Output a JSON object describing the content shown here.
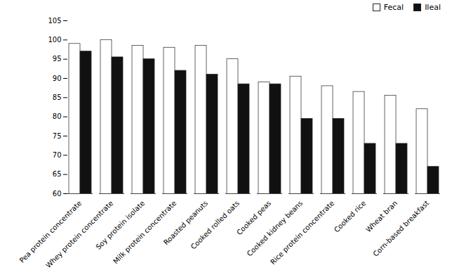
{
  "chart_data": {
    "type": "bar",
    "categories": [
      "Pea protein concentrate",
      "Whey protein concentrate",
      "Soy protein isolate",
      "Milk protein concentrate",
      "Roasted peanuts",
      "Cooked rolled oats",
      "Cooked peas",
      "Cooked kidney beans",
      "Rice protein concentrate",
      "Cooked rice",
      "Wheat bran",
      "Corn-based breakfast"
    ],
    "series": [
      {
        "name": "Fecal",
        "color": "#ffffff",
        "values": [
          99,
          100,
          98.5,
          98,
          98.5,
          95,
          89,
          90.5,
          88,
          86.5,
          85.5,
          82
        ]
      },
      {
        "name": "Ileal",
        "color": "#111111",
        "values": [
          97,
          95.5,
          95,
          92,
          91,
          88.5,
          88.5,
          79.5,
          79.5,
          73,
          73,
          67
        ]
      }
    ],
    "ylim": [
      60,
      105
    ],
    "yticks": [
      60,
      65,
      70,
      75,
      80,
      85,
      90,
      95,
      100,
      105
    ],
    "grid": false,
    "legend": "upper right"
  }
}
